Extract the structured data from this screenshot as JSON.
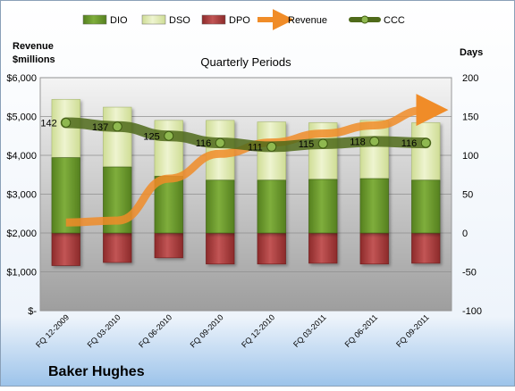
{
  "chart_data": {
    "type": "bar",
    "title": "Quarterly Periods",
    "company": "Baker Hughes",
    "left_axis_label_line1": "Revenue",
    "left_axis_label_line2": "$millions",
    "right_axis_label": "Days",
    "categories": [
      "FQ 12-2009",
      "FQ 03-2010",
      "FQ 06-2010",
      "FQ 09-2010",
      "FQ 12-2010",
      "FQ 03-2011",
      "FQ 06-2011",
      "FQ 09-2011"
    ],
    "left_axis": {
      "min": 0,
      "max": 6000,
      "step": 1000,
      "tick_labels": [
        "$-",
        "$1,000",
        "$2,000",
        "$3,000",
        "$4,000",
        "$5,000",
        "$6,000"
      ]
    },
    "right_axis": {
      "min": -100,
      "max": 200,
      "step": 50,
      "tick_labels": [
        "-100",
        "-50",
        "0",
        "50",
        "100",
        "150",
        "200"
      ]
    },
    "series": [
      {
        "name": "DIO",
        "axis": "days",
        "kind": "stacked-bar",
        "color": "#6e9a2e",
        "values": [
          97,
          85,
          73,
          68,
          68,
          69,
          70,
          68
        ]
      },
      {
        "name": "DSO",
        "axis": "days",
        "kind": "stacked-bar",
        "color": "#dde8b0",
        "values": [
          75,
          77,
          72,
          77,
          75,
          73,
          75,
          74
        ]
      },
      {
        "name": "DPO",
        "axis": "days",
        "kind": "negative-bar",
        "color": "#a83838",
        "values": [
          -42,
          -38,
          -32,
          -40,
          -40,
          -39,
          -40,
          -39
        ]
      },
      {
        "name": "Revenue",
        "axis": "revenue",
        "kind": "arrow-line",
        "color": "#f08c28",
        "values": [
          2270,
          2320,
          3400,
          4040,
          4330,
          4560,
          4770,
          5170
        ]
      },
      {
        "name": "CCC",
        "axis": "days",
        "kind": "line-markers",
        "color": "#5f7a1f",
        "values": [
          142,
          137,
          125,
          116,
          111,
          115,
          118,
          116
        ]
      }
    ],
    "ccc_labels": [
      "142",
      "137",
      "125",
      "116",
      "111",
      "115",
      "118",
      "116"
    ],
    "legend": {
      "position": "top",
      "items": [
        "DIO",
        "DSO",
        "DPO",
        "Revenue",
        "CCC"
      ]
    }
  }
}
